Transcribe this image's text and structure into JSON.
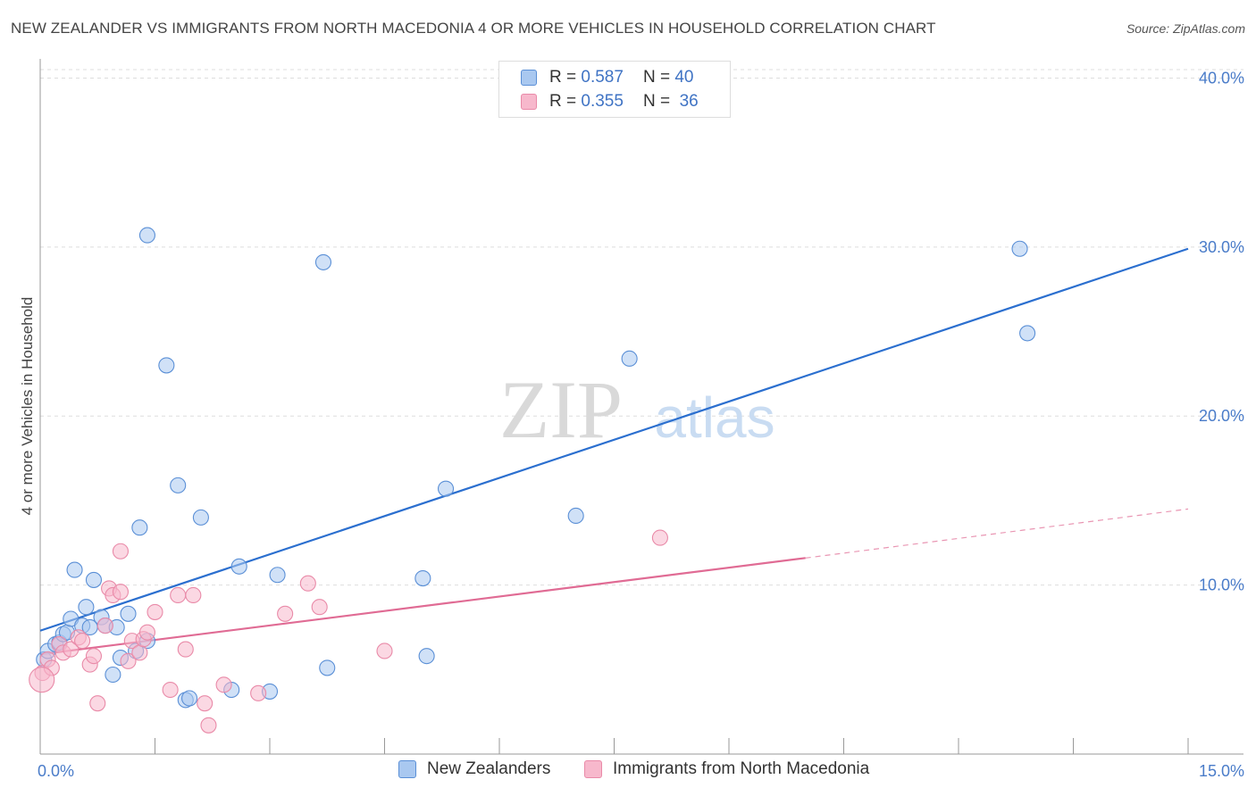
{
  "title": "NEW ZEALANDER VS IMMIGRANTS FROM NORTH MACEDONIA 4 OR MORE VEHICLES IN HOUSEHOLD CORRELATION CHART",
  "source": "Source: ZipAtlas.com",
  "watermark": {
    "zip": "ZIP",
    "atlas": "atlas"
  },
  "legend": {
    "r_label": "R =",
    "n_label": "N =",
    "rows": [
      {
        "r": "0.587",
        "n": "40"
      },
      {
        "r": "0.355",
        "n": "36"
      }
    ]
  },
  "colors": {
    "blue_fill": "#a9c8f0",
    "blue_stroke": "#5a8fd6",
    "blue_line": "#2b6fcf",
    "pink_fill": "#f7b8cc",
    "pink_stroke": "#e98aa8",
    "pink_line": "#e06b94",
    "grid": "#dddddd",
    "tick_text": "#4a7cc9"
  },
  "chart_data": {
    "type": "scatter",
    "title": "NEW ZEALANDER VS IMMIGRANTS FROM NORTH MACEDONIA 4 OR MORE VEHICLES IN HOUSEHOLD CORRELATION CHART",
    "xlabel": "",
    "ylabel": "4 or more Vehicles in Household",
    "xlim": [
      0,
      15
    ],
    "ylim": [
      0,
      40.5
    ],
    "x_tick_labels": [
      "0.0%",
      "15.0%"
    ],
    "y_ticks": [
      10,
      20,
      30,
      40
    ],
    "y_tick_labels": [
      "10.0%",
      "20.0%",
      "30.0%",
      "40.0%"
    ],
    "grid": true,
    "legend_position": "bottom",
    "series": [
      {
        "name": "New Zealanders",
        "r": 0.587,
        "n": 40,
        "points": [
          [
            0.05,
            5.6
          ],
          [
            0.1,
            6.1
          ],
          [
            0.2,
            6.5
          ],
          [
            0.25,
            6.6
          ],
          [
            0.3,
            7.1
          ],
          [
            0.35,
            7.2
          ],
          [
            0.4,
            8.0
          ],
          [
            0.45,
            10.9
          ],
          [
            0.55,
            7.6
          ],
          [
            0.6,
            8.7
          ],
          [
            0.65,
            7.5
          ],
          [
            0.7,
            10.3
          ],
          [
            0.8,
            8.1
          ],
          [
            0.85,
            7.6
          ],
          [
            0.95,
            4.7
          ],
          [
            1.0,
            7.5
          ],
          [
            1.05,
            5.7
          ],
          [
            1.15,
            8.3
          ],
          [
            1.25,
            6.1
          ],
          [
            1.3,
            13.4
          ],
          [
            1.4,
            6.7
          ],
          [
            1.4,
            30.7
          ],
          [
            1.65,
            23.0
          ],
          [
            1.8,
            15.9
          ],
          [
            1.9,
            3.2
          ],
          [
            1.95,
            3.3
          ],
          [
            2.1,
            14.0
          ],
          [
            2.5,
            3.8
          ],
          [
            2.6,
            11.1
          ],
          [
            3.1,
            10.6
          ],
          [
            3.0,
            3.7
          ],
          [
            3.7,
            29.1
          ],
          [
            3.75,
            5.1
          ],
          [
            5.0,
            10.4
          ],
          [
            5.05,
            5.8
          ],
          [
            5.3,
            15.7
          ],
          [
            7.0,
            14.1
          ],
          [
            7.7,
            23.4
          ],
          [
            12.8,
            29.9
          ],
          [
            12.9,
            24.9
          ]
        ]
      },
      {
        "name": "Immigrants from North Macedonia",
        "r": 0.355,
        "n": 36,
        "points": [
          [
            0.03,
            4.8
          ],
          [
            0.1,
            5.6
          ],
          [
            0.15,
            5.1
          ],
          [
            0.25,
            6.5
          ],
          [
            0.3,
            6.0
          ],
          [
            0.4,
            6.2
          ],
          [
            0.5,
            6.9
          ],
          [
            0.55,
            6.7
          ],
          [
            0.65,
            5.3
          ],
          [
            0.7,
            5.8
          ],
          [
            0.75,
            3.0
          ],
          [
            0.85,
            7.6
          ],
          [
            0.9,
            9.8
          ],
          [
            0.95,
            9.4
          ],
          [
            1.05,
            9.6
          ],
          [
            1.05,
            12.0
          ],
          [
            1.15,
            5.5
          ],
          [
            1.2,
            6.7
          ],
          [
            1.3,
            6.0
          ],
          [
            1.35,
            6.8
          ],
          [
            1.4,
            7.2
          ],
          [
            1.5,
            8.4
          ],
          [
            1.7,
            3.8
          ],
          [
            1.8,
            9.4
          ],
          [
            1.9,
            6.2
          ],
          [
            2.0,
            9.4
          ],
          [
            2.15,
            3.0
          ],
          [
            2.2,
            1.7
          ],
          [
            2.4,
            4.1
          ],
          [
            2.85,
            3.6
          ],
          [
            3.2,
            8.3
          ],
          [
            3.5,
            10.1
          ],
          [
            3.65,
            8.7
          ],
          [
            4.5,
            6.1
          ],
          [
            8.1,
            12.8
          ],
          [
            0.02,
            4.4
          ]
        ]
      }
    ],
    "trend_lines": [
      {
        "series": "New Zealanders",
        "x0": 0,
        "y0": 7.3,
        "x1": 15,
        "y1": 29.9
      },
      {
        "series": "Immigrants from North Macedonia",
        "x0": 0,
        "y0": 5.9,
        "x1": 10,
        "y1": 11.6,
        "dashed_to_x": 15,
        "dashed_to_y": 14.5
      }
    ]
  },
  "bottom_legend": [
    {
      "label": "New Zealanders"
    },
    {
      "label": "Immigrants from North Macedonia"
    }
  ]
}
